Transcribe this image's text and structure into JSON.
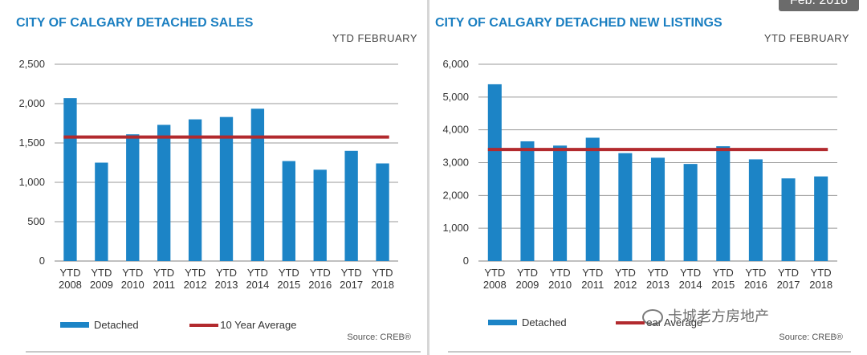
{
  "badge": "Feb. 2018",
  "watermark": "卡城老方房地产",
  "colors": {
    "bar": "#1c84c6",
    "average": "#b22a2e",
    "title": "#1b7fc1"
  },
  "chart_data": [
    {
      "type": "bar",
      "title": "CITY OF CALGARY DETACHED SALES",
      "subtitle": "YTD  FEBRUARY",
      "source": "Source: CREB®",
      "categories": [
        [
          "YTD",
          "2008"
        ],
        [
          "YTD",
          "2009"
        ],
        [
          "YTD",
          "2010"
        ],
        [
          "YTD",
          "2011"
        ],
        [
          "YTD",
          "2012"
        ],
        [
          "YTD",
          "2013"
        ],
        [
          "YTD",
          "2014"
        ],
        [
          "YTD",
          "2015"
        ],
        [
          "YTD",
          "2016"
        ],
        [
          "YTD",
          "2017"
        ],
        [
          "YTD",
          "2018"
        ]
      ],
      "series": [
        {
          "name": "Detached",
          "values": [
            2070,
            1250,
            1610,
            1730,
            1800,
            1830,
            1935,
            1270,
            1160,
            1400,
            1240
          ]
        }
      ],
      "average": {
        "name": "10 Year Average",
        "value": 1575
      },
      "ylim": [
        0,
        2500
      ],
      "yticks": [
        0,
        500,
        1000,
        1500,
        2000,
        2500
      ],
      "ytick_labels": [
        "0",
        "500",
        "1,000",
        "1,500",
        "2,000",
        "2,500"
      ],
      "legend": {
        "bar_label": "Detached",
        "line_label": "10 Year Average"
      }
    },
    {
      "type": "bar",
      "title": "CITY OF CALGARY DETACHED NEW LISTINGS",
      "subtitle": "YTD  FEBRUARY",
      "source": "Source: CREB®",
      "categories": [
        [
          "YTD",
          "2008"
        ],
        [
          "YTD",
          "2009"
        ],
        [
          "YTD",
          "2010"
        ],
        [
          "YTD",
          "2011"
        ],
        [
          "YTD",
          "2012"
        ],
        [
          "YTD",
          "2013"
        ],
        [
          "YTD",
          "2014"
        ],
        [
          "YTD",
          "2015"
        ],
        [
          "YTD",
          "2016"
        ],
        [
          "YTD",
          "2017"
        ],
        [
          "YTD",
          "2018"
        ]
      ],
      "series": [
        {
          "name": "Detached",
          "values": [
            5390,
            3650,
            3520,
            3760,
            3290,
            3150,
            2960,
            3500,
            3100,
            2520,
            2580
          ]
        }
      ],
      "average": {
        "name": "10 Year Average",
        "value": 3400
      },
      "ylim": [
        0,
        6000
      ],
      "yticks": [
        0,
        1000,
        2000,
        3000,
        4000,
        5000,
        6000
      ],
      "ytick_labels": [
        "0",
        "1,000",
        "2,000",
        "3,000",
        "4,000",
        "5,000",
        "6,000"
      ],
      "legend": {
        "bar_label": "Detached",
        "line_label": "ear Average"
      }
    }
  ]
}
